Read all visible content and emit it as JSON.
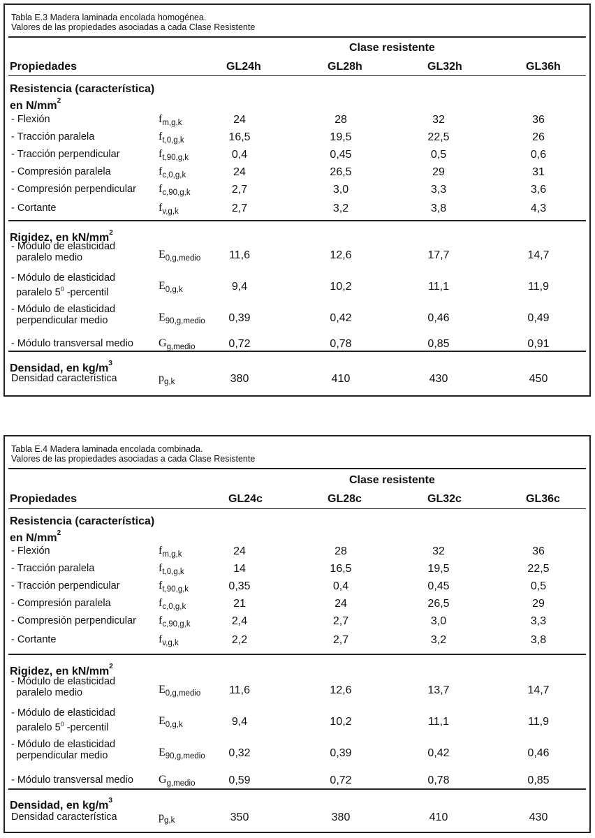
{
  "tables": [
    {
      "caption_line1": "Tabla E.3 Madera laminada encolada homogénea.",
      "caption_line2": "Valores de las propiedades asociadas a cada Clase Resistente",
      "clase_header": "Clase resistente",
      "propiedades_header": "Propiedades",
      "columns": [
        "GL24h",
        "GL28h",
        "GL32h",
        "GL36h"
      ],
      "resistencia_title": "Resistencia (característica)",
      "resistencia_unit": "en N/mm",
      "rigidez_title": "Rigidez, en kN/mm",
      "densidad_title": "Densidad, en kg/m",
      "rows": [
        {
          "label": "- Flexión",
          "sym": "f",
          "sub": "m,g,k",
          "values": [
            "24",
            "28",
            "32",
            "36"
          ]
        },
        {
          "label": "- Tracción paralela",
          "sym": "f",
          "sub": "t,0,g,k",
          "values": [
            "16,5",
            "19,5",
            "22,5",
            "26"
          ]
        },
        {
          "label": "- Tracción perpendicular",
          "sym": "f",
          "sub": "t,90,g,k",
          "values": [
            "0,4",
            "0,45",
            "0,5",
            "0,6"
          ]
        },
        {
          "label": "- Compresión paralela",
          "sym": "f",
          "sub": "c,0,g,k",
          "values": [
            "24",
            "26,5",
            "29",
            "31"
          ]
        },
        {
          "label": "- Compresión perpendicular",
          "sym": "f",
          "sub": "c,90,g,k",
          "values": [
            "2,7",
            "3,0",
            "3,3",
            "3,6"
          ]
        },
        {
          "label": "- Cortante",
          "sym": "f",
          "sub": "v,g,k",
          "values": [
            "2,7",
            "3,2",
            "3,8",
            "4,3"
          ]
        },
        {
          "label1": "- Módulo de elasticidad",
          "label2": "paralelo medio",
          "sym": "E",
          "sub": "0,g,medio",
          "values": [
            "11,6",
            "12,6",
            "17,7",
            "14,7"
          ]
        },
        {
          "label1": "- Módulo de elasticidad",
          "label2a": "paralelo 5",
          "label2b": " -percentil",
          "sym": "E",
          "sub": "0,g,k",
          "values": [
            "9,4",
            "10,2",
            "11,1",
            "11,9"
          ]
        },
        {
          "label1": "- Módulo de elasticidad",
          "label2": "perpendicular medio",
          "sym": "E",
          "sub": "90,g,medio",
          "values": [
            "0,39",
            "0,42",
            "0,46",
            "0,49"
          ]
        },
        {
          "label": "- Módulo transversal medio",
          "sym": "G",
          "sub": "g,medio",
          "values": [
            "0,72",
            "0,78",
            "0,85",
            "0,91"
          ]
        },
        {
          "label": "Densidad característica",
          "sym": "p",
          "sub": "g,k",
          "values": [
            "380",
            "410",
            "430",
            "450"
          ]
        }
      ]
    },
    {
      "caption_line1": "Tabla E.4 Madera laminada encolada combinada.",
      "caption_line2": "Valores de las propiedades asociadas a cada Clase Resistente",
      "clase_header": "Clase resistente",
      "propiedades_header": "Propiedades",
      "columns": [
        "GL24c",
        "GL28c",
        "GL32c",
        "GL36c"
      ],
      "resistencia_title": "Resistencia (característica)",
      "resistencia_unit": "en N/mm",
      "rigidez_title": "Rigidez, en kN/mm",
      "densidad_title": "Densidad, en kg/m",
      "rows": [
        {
          "label": "- Flexión",
          "sym": "f",
          "sub": "m,g,k",
          "values": [
            "24",
            "28",
            "32",
            "36"
          ]
        },
        {
          "label": "- Tracción paralela",
          "sym": "f",
          "sub": "t,0,g,k",
          "values": [
            "14",
            "16,5",
            "19,5",
            "22,5"
          ]
        },
        {
          "label": "- Tracción perpendicular",
          "sym": "f",
          "sub": "t,90,g,k",
          "values": [
            "0,35",
            "0,4",
            "0,45",
            "0,5"
          ]
        },
        {
          "label": "- Compresión paralela",
          "sym": "f",
          "sub": "c,0,g,k",
          "values": [
            "21",
            "24",
            "26,5",
            "29"
          ]
        },
        {
          "label": "- Compresión perpendicular",
          "sym": "f",
          "sub": "c,90,g,k",
          "values": [
            "2,4",
            "2,7",
            "3,0",
            "3,3"
          ]
        },
        {
          "label": "- Cortante",
          "sym": "f",
          "sub": "v,g,k",
          "values": [
            "2,2",
            "2,7",
            "3,2",
            "3,8"
          ]
        },
        {
          "label1": "- Módulo de elasticidad",
          "label2": "paralelo medio",
          "sym": "E",
          "sub": "0,g,medio",
          "values": [
            "11,6",
            "12,6",
            "13,7",
            "14,7"
          ]
        },
        {
          "label1": "- Módulo de elasticidad",
          "label2a": "paralelo 5",
          "label2b": " -percentil",
          "sym": "E",
          "sub": "0,g,k",
          "values": [
            "9,4",
            "10,2",
            "11,1",
            "11,9"
          ]
        },
        {
          "label1": "- Módulo de elasticidad",
          "label2": "perpendicular medio",
          "sym": "E",
          "sub": "90,g,medio",
          "values": [
            "0,32",
            "0,39",
            "0,42",
            "0,46"
          ]
        },
        {
          "label": "- Módulo transversal medio",
          "sym": "G",
          "sub": "g,medio",
          "values": [
            "0,59",
            "0,72",
            "0,78",
            "0,85"
          ]
        },
        {
          "label": "Densidad característica",
          "sym": "p",
          "sub": "g,k",
          "values": [
            "350",
            "380",
            "410",
            "430"
          ]
        }
      ]
    }
  ]
}
